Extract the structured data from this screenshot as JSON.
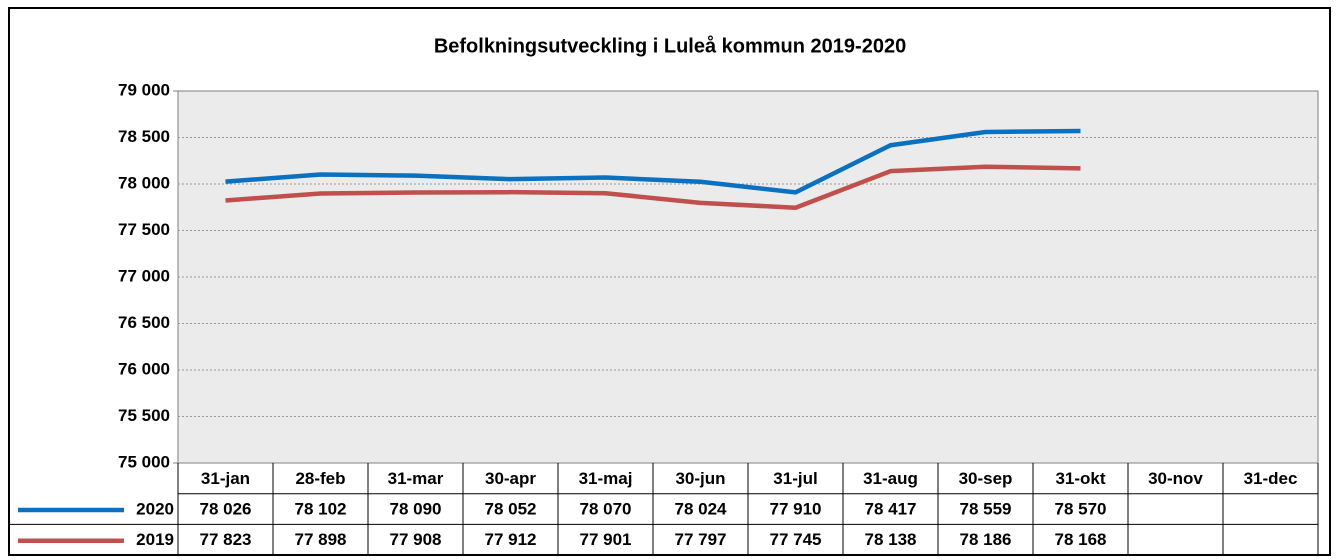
{
  "chart_data": {
    "type": "line",
    "title": "Befolkningsutveckling i Luleå kommun 2019-2020",
    "categories": [
      "31-jan",
      "28-feb",
      "31-mar",
      "30-apr",
      "31-maj",
      "30-jun",
      "31-jul",
      "31-aug",
      "30-sep",
      "31-okt",
      "30-nov",
      "31-dec"
    ],
    "series": [
      {
        "name": "2020",
        "color": "#0a70c0",
        "values": [
          78026,
          78102,
          78090,
          78052,
          78070,
          78024,
          77910,
          78417,
          78559,
          78570,
          null,
          null
        ],
        "value_labels": [
          "78 026",
          "78 102",
          "78 090",
          "78 052",
          "78 070",
          "78 024",
          "77 910",
          "78 417",
          "78 559",
          "78 570",
          null,
          null
        ]
      },
      {
        "name": "2019",
        "color": "#c0504d",
        "values": [
          77823,
          77898,
          77908,
          77912,
          77901,
          77797,
          77745,
          78138,
          78186,
          78168,
          null,
          null
        ],
        "value_labels": [
          "77 823",
          "77 898",
          "77 908",
          "77 912",
          "77 901",
          "77 797",
          "77 745",
          "78 138",
          "78 186",
          "78 168",
          null,
          null
        ]
      }
    ],
    "ylim": [
      75000,
      79000
    ],
    "yticks": [
      {
        "value": 75000,
        "label": "75 000"
      },
      {
        "value": 75500,
        "label": "75 500"
      },
      {
        "value": 76000,
        "label": "76 000"
      },
      {
        "value": 76500,
        "label": "76 500"
      },
      {
        "value": 77000,
        "label": "77 000"
      },
      {
        "value": 77500,
        "label": "77 500"
      },
      {
        "value": 78000,
        "label": "78 000"
      },
      {
        "value": 78500,
        "label": "78 500"
      },
      {
        "value": 79000,
        "label": "79 000"
      }
    ],
    "grid": true
  }
}
